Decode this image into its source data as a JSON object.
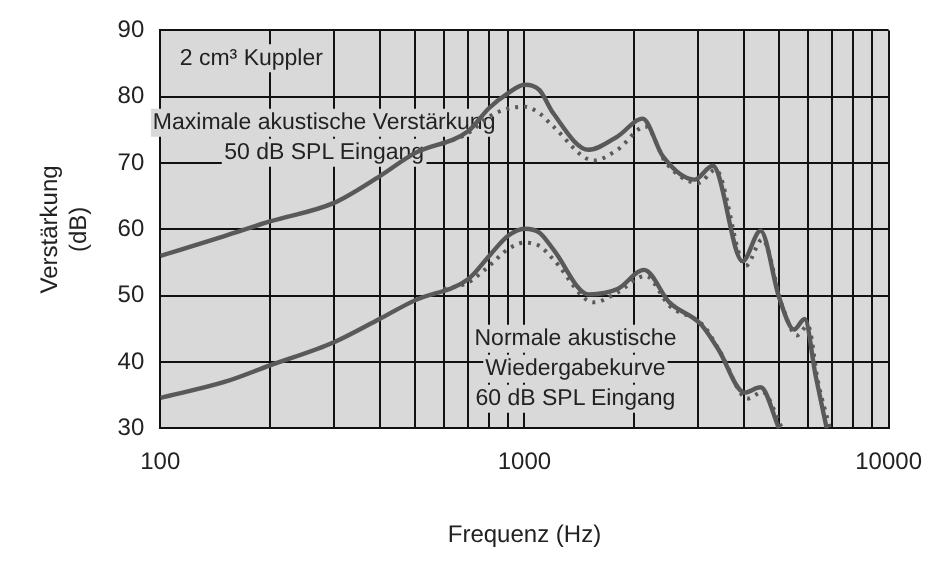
{
  "chart_data": {
    "type": "line",
    "xlabel": "Frequenz (Hz)",
    "ylabel": "Verstärkung\n(dB)",
    "log": "x",
    "grid": true,
    "marker": "none",
    "legend": false,
    "xlim": [
      100,
      10000
    ],
    "ylim": [
      30,
      90
    ],
    "xticks": [
      100,
      {
        "value": 200,
        "label": null
      },
      {
        "value": 300,
        "label": null
      },
      {
        "value": 400,
        "label": null
      },
      {
        "value": 500,
        "label": null
      },
      {
        "value": 600,
        "label": null
      },
      {
        "value": 700,
        "label": null
      },
      {
        "value": 800,
        "label": null
      },
      {
        "value": 900,
        "label": null
      },
      1000,
      {
        "value": 2000,
        "label": null
      },
      {
        "value": 3000,
        "label": null
      },
      {
        "value": 4000,
        "label": null
      },
      {
        "value": 5000,
        "label": null
      },
      {
        "value": 6000,
        "label": null
      },
      {
        "value": 7000,
        "label": null
      },
      {
        "value": 8000,
        "label": null
      },
      {
        "value": 9000,
        "label": null
      },
      10000
    ],
    "yticks": [
      30,
      40,
      50,
      60,
      70,
      80,
      90
    ],
    "series": [
      {
        "color": "#595959",
        "line_style": "solid",
        "x": [
          100,
          150,
          200,
          300,
          400,
          500,
          700,
          800,
          900,
          1000,
          1100,
          1200,
          1500,
          1800,
          2110,
          2400,
          2930,
          3290,
          3970,
          4450,
          5000,
          5500,
          5880,
          6300,
          6760
        ],
        "values": [
          56,
          59,
          61.2,
          64,
          68,
          71.5,
          74.8,
          78.3,
          80.5,
          81.8,
          81,
          77.5,
          72,
          74,
          76.7,
          71,
          67.5,
          69.6,
          55.2,
          59.8,
          49.8,
          44.9,
          46.5,
          38,
          30
        ]
      },
      {
        "color": "#595959",
        "line_style": "dotted",
        "x": [
          600,
          700,
          800,
          900,
          1000,
          1100,
          1200,
          1550,
          1800,
          2150,
          2450,
          3000,
          3350,
          4050,
          4500,
          5100,
          5600,
          6000,
          6400,
          6900
        ],
        "values": [
          73,
          74.5,
          77,
          78.2,
          78.5,
          77.5,
          75.5,
          70.4,
          72,
          75.5,
          70,
          67,
          69,
          54.5,
          58.5,
          48.5,
          44,
          45.5,
          37,
          30
        ]
      },
      {
        "color": "#595959",
        "line_style": "solid",
        "x": [
          100,
          150,
          200,
          300,
          400,
          500,
          700,
          800,
          900,
          1000,
          1100,
          1200,
          1500,
          1800,
          2130,
          2500,
          3050,
          3400,
          4020,
          4450,
          5000
        ],
        "values": [
          34.6,
          37,
          39.5,
          43,
          46.5,
          49.3,
          52.5,
          56,
          59,
          60.1,
          59.5,
          57,
          50.2,
          51,
          53.9,
          49,
          45.7,
          42,
          35.4,
          36.2,
          30
        ]
      },
      {
        "color": "#595959",
        "line_style": "dotted",
        "x": [
          600,
          700,
          800,
          900,
          1000,
          1100,
          1200,
          1550,
          1800,
          2150,
          2500,
          3100,
          3450,
          4100,
          4500,
          5100
        ],
        "values": [
          51,
          52,
          54.5,
          57,
          58,
          57.5,
          55.5,
          49,
          50.5,
          53,
          48.5,
          45.5,
          41.5,
          34.5,
          35.5,
          30
        ]
      }
    ],
    "annotations": [
      "2 cm³ Kuppler",
      "Maximale akustische Verstärkung\n50 dB SPL Eingang",
      "Normale akustische\nWiedergabekurve\n60 dB SPL Eingang"
    ]
  }
}
